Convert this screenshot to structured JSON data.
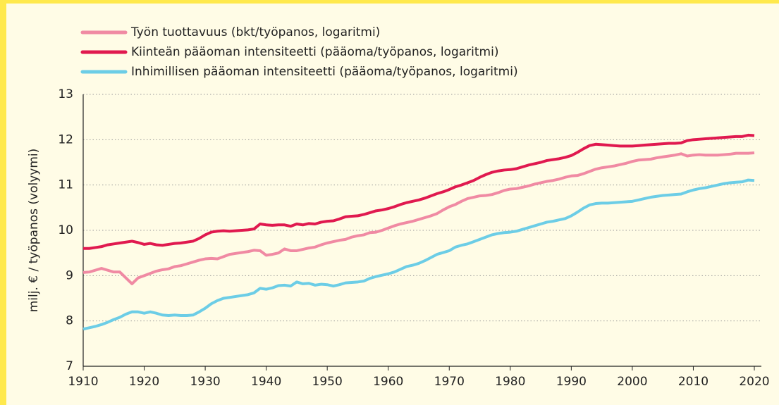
{
  "chart_data": {
    "type": "line",
    "ylabel": "milj. € / työpanos (volyymi)",
    "x": [
      1910,
      1911,
      1912,
      1913,
      1914,
      1915,
      1916,
      1917,
      1918,
      1919,
      1920,
      1921,
      1922,
      1923,
      1924,
      1925,
      1926,
      1927,
      1928,
      1929,
      1930,
      1931,
      1932,
      1933,
      1934,
      1935,
      1936,
      1937,
      1938,
      1939,
      1940,
      1941,
      1942,
      1943,
      1944,
      1945,
      1946,
      1947,
      1948,
      1949,
      1950,
      1951,
      1952,
      1953,
      1954,
      1955,
      1956,
      1957,
      1958,
      1959,
      1960,
      1961,
      1962,
      1963,
      1964,
      1965,
      1966,
      1967,
      1968,
      1969,
      1970,
      1971,
      1972,
      1973,
      1974,
      1975,
      1976,
      1977,
      1978,
      1979,
      1980,
      1981,
      1982,
      1983,
      1984,
      1985,
      1986,
      1987,
      1988,
      1989,
      1990,
      1991,
      1992,
      1993,
      1994,
      1995,
      1996,
      1997,
      1998,
      1999,
      2000,
      2001,
      2002,
      2003,
      2004,
      2005,
      2006,
      2007,
      2008,
      2009,
      2010,
      2011,
      2012,
      2013,
      2014,
      2015,
      2016,
      2017,
      2018,
      2019,
      2020
    ],
    "series": [
      {
        "name": "Työn tuottavuus (bkt/työpanos, logaritmi)",
        "color": "#f08aa3",
        "values": [
          9.07,
          9.08,
          9.12,
          9.16,
          9.12,
          9.08,
          9.08,
          8.95,
          8.82,
          8.95,
          9.0,
          9.05,
          9.1,
          9.13,
          9.15,
          9.2,
          9.22,
          9.26,
          9.3,
          9.34,
          9.37,
          9.38,
          9.37,
          9.42,
          9.47,
          9.49,
          9.51,
          9.53,
          9.56,
          9.55,
          9.45,
          9.47,
          9.5,
          9.59,
          9.55,
          9.55,
          9.58,
          9.61,
          9.63,
          9.68,
          9.72,
          9.75,
          9.78,
          9.8,
          9.85,
          9.88,
          9.9,
          9.95,
          9.96,
          10.0,
          10.05,
          10.1,
          10.14,
          10.17,
          10.2,
          10.24,
          10.28,
          10.32,
          10.37,
          10.45,
          10.52,
          10.57,
          10.64,
          10.7,
          10.73,
          10.76,
          10.77,
          10.79,
          10.83,
          10.88,
          10.91,
          10.92,
          10.95,
          10.98,
          11.02,
          11.05,
          11.08,
          11.1,
          11.13,
          11.17,
          11.2,
          11.21,
          11.25,
          11.3,
          11.35,
          11.38,
          11.4,
          11.42,
          11.45,
          11.48,
          11.52,
          11.55,
          11.56,
          11.57,
          11.6,
          11.62,
          11.64,
          11.66,
          11.69,
          11.64,
          11.66,
          11.67,
          11.66,
          11.66,
          11.66,
          11.67,
          11.68,
          11.7,
          11.7,
          11.7,
          11.71
        ]
      },
      {
        "name": "Kiinteän pääoman intensiteetti (pääoma/työpanos, logaritmi)",
        "color": "#e0194f",
        "values": [
          9.6,
          9.6,
          9.62,
          9.64,
          9.68,
          9.7,
          9.72,
          9.74,
          9.76,
          9.73,
          9.69,
          9.71,
          9.68,
          9.67,
          9.69,
          9.71,
          9.72,
          9.74,
          9.76,
          9.82,
          9.9,
          9.96,
          9.98,
          9.99,
          9.98,
          9.99,
          10.0,
          10.01,
          10.03,
          10.14,
          10.12,
          10.11,
          10.12,
          10.12,
          10.09,
          10.14,
          10.12,
          10.15,
          10.14,
          10.18,
          10.2,
          10.21,
          10.25,
          10.3,
          10.31,
          10.32,
          10.35,
          10.39,
          10.43,
          10.45,
          10.48,
          10.52,
          10.57,
          10.61,
          10.64,
          10.67,
          10.71,
          10.76,
          10.81,
          10.85,
          10.9,
          10.96,
          11.0,
          11.05,
          11.1,
          11.17,
          11.23,
          11.28,
          11.31,
          11.33,
          11.34,
          11.36,
          11.4,
          11.44,
          11.47,
          11.5,
          11.54,
          11.56,
          11.58,
          11.61,
          11.65,
          11.72,
          11.8,
          11.87,
          11.9,
          11.89,
          11.88,
          11.87,
          11.86,
          11.86,
          11.86,
          11.87,
          11.88,
          11.89,
          11.9,
          11.91,
          11.92,
          11.92,
          11.93,
          11.98,
          12.0,
          12.01,
          12.02,
          12.03,
          12.04,
          12.05,
          12.06,
          12.07,
          12.07,
          12.1,
          12.09
        ]
      },
      {
        "name": "Inhimillisen pääoman intensiteetti (pääoma/työpanos, logaritmi)",
        "color": "#6ccde6",
        "values": [
          7.82,
          7.85,
          7.88,
          7.92,
          7.97,
          8.03,
          8.08,
          8.15,
          8.2,
          8.2,
          8.17,
          8.2,
          8.17,
          8.13,
          8.12,
          8.13,
          8.12,
          8.12,
          8.13,
          8.2,
          8.28,
          8.38,
          8.45,
          8.5,
          8.52,
          8.54,
          8.56,
          8.58,
          8.62,
          8.72,
          8.7,
          8.73,
          8.78,
          8.79,
          8.77,
          8.86,
          8.82,
          8.83,
          8.79,
          8.81,
          8.8,
          8.77,
          8.8,
          8.84,
          8.85,
          8.86,
          8.88,
          8.94,
          8.98,
          9.01,
          9.04,
          9.08,
          9.14,
          9.2,
          9.23,
          9.27,
          9.33,
          9.4,
          9.47,
          9.51,
          9.55,
          9.63,
          9.67,
          9.7,
          9.75,
          9.8,
          9.85,
          9.9,
          9.93,
          9.95,
          9.96,
          9.98,
          10.02,
          10.06,
          10.1,
          10.14,
          10.18,
          10.2,
          10.23,
          10.26,
          10.32,
          10.4,
          10.49,
          10.56,
          10.59,
          10.6,
          10.6,
          10.61,
          10.62,
          10.63,
          10.64,
          10.67,
          10.7,
          10.73,
          10.75,
          10.77,
          10.78,
          10.79,
          10.8,
          10.85,
          10.89,
          10.92,
          10.94,
          10.97,
          11.0,
          11.03,
          11.05,
          11.06,
          11.07,
          11.11,
          11.1
        ]
      }
    ],
    "xlim": [
      1910,
      2020
    ],
    "xticks": [
      1910,
      1920,
      1930,
      1940,
      1950,
      1960,
      1970,
      1980,
      1990,
      2000,
      2010,
      2020
    ],
    "ylim": [
      7,
      13
    ],
    "yticks": [
      7,
      8,
      9,
      10,
      11,
      12,
      13
    ],
    "grid": true
  }
}
